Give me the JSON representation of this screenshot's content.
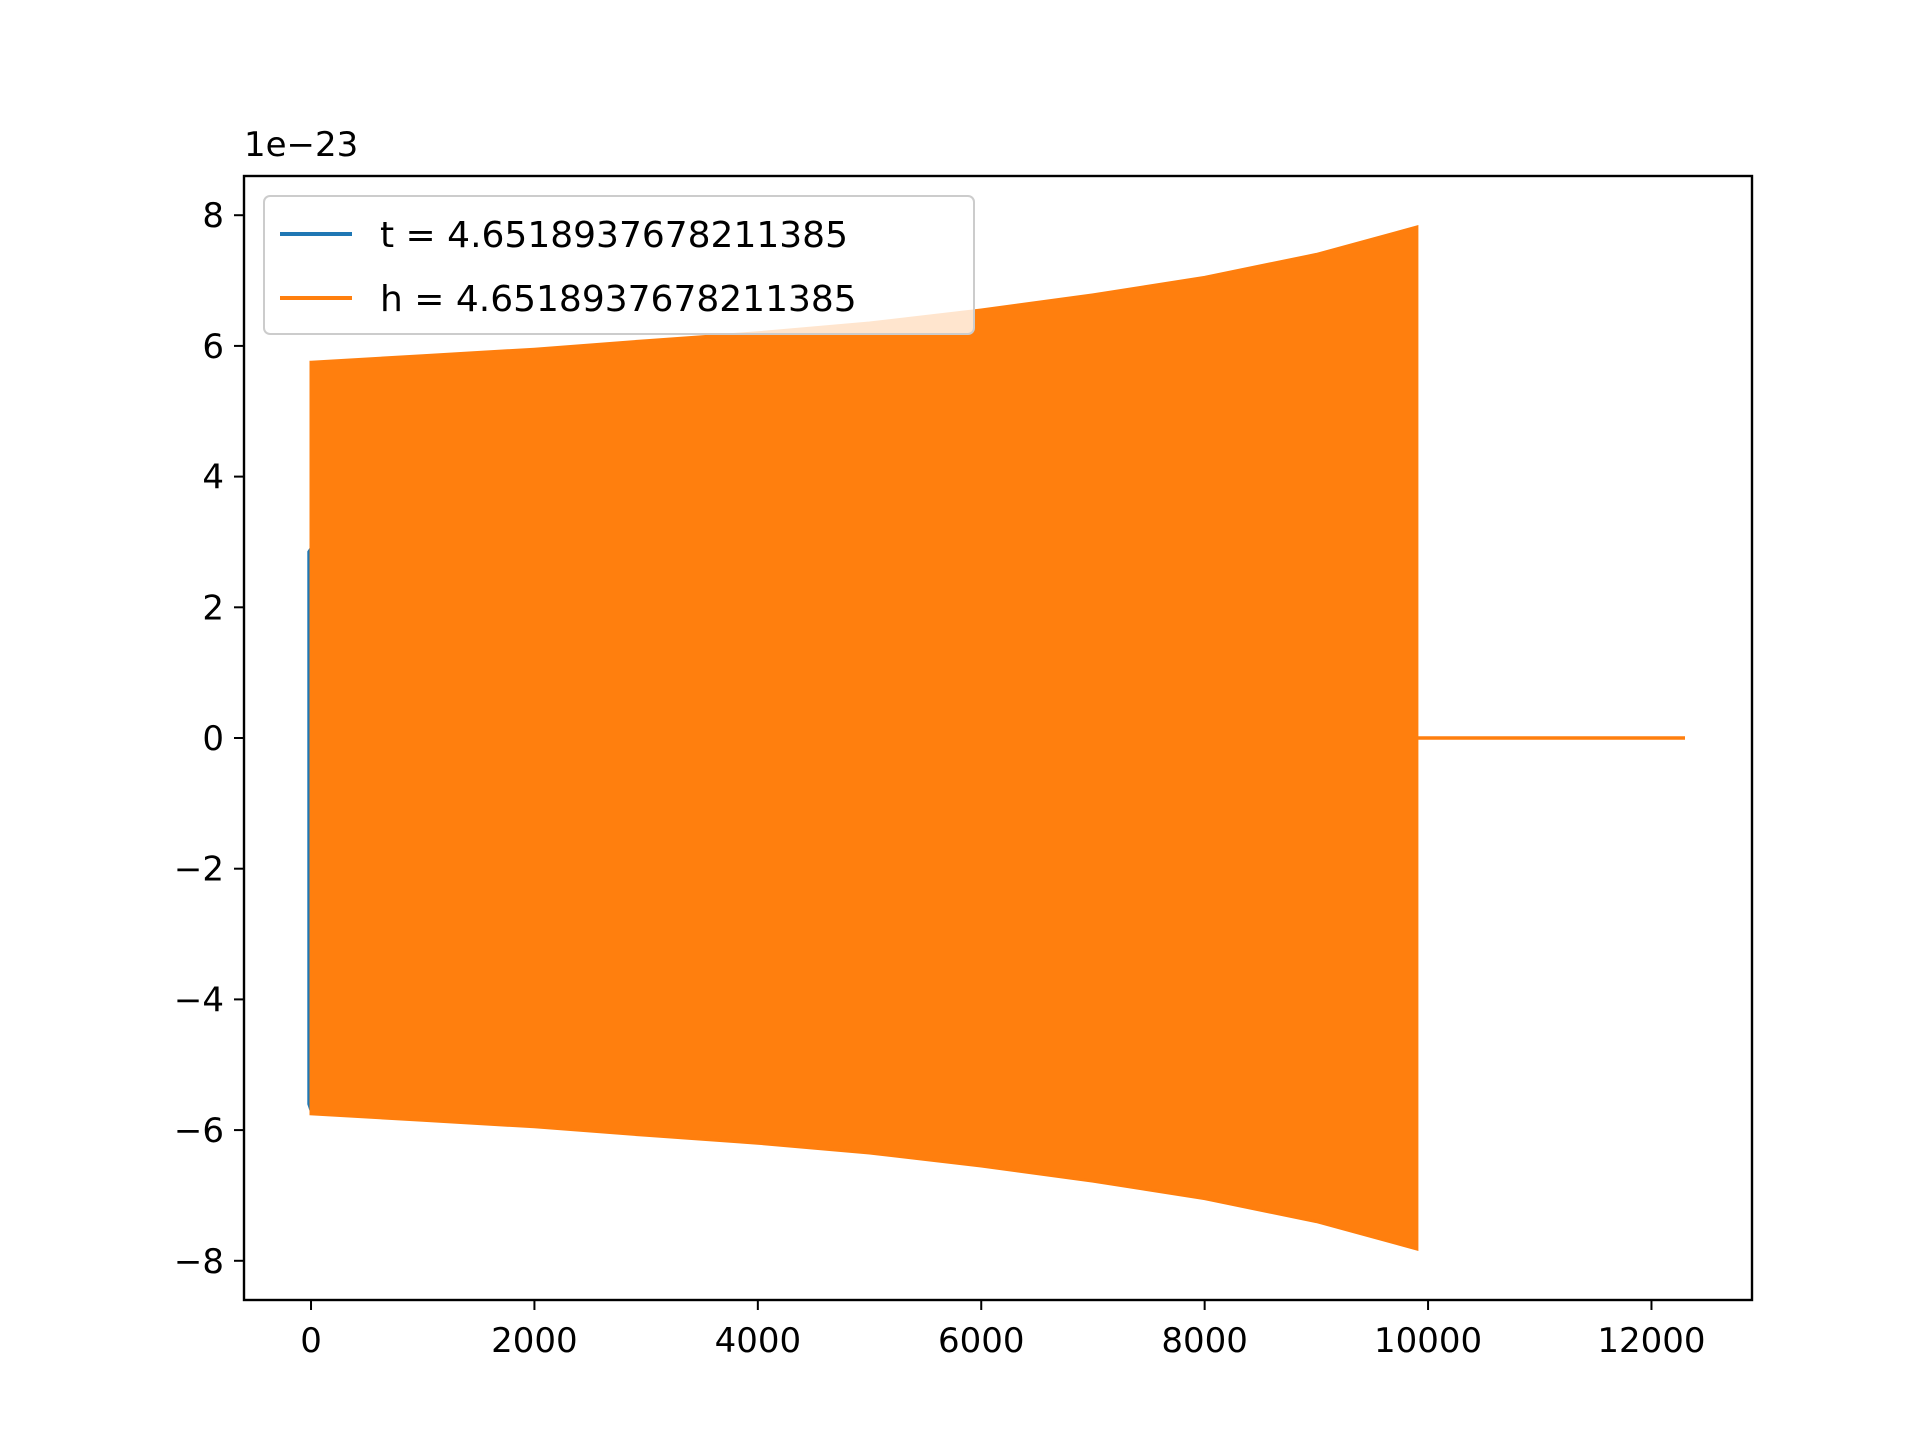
{
  "chart_data": {
    "type": "line",
    "title": "",
    "xlabel": "",
    "ylabel": "",
    "y_offset_label": "1e−23",
    "xlim": [
      -600,
      12900
    ],
    "ylim": [
      -8.6,
      8.6
    ],
    "x_ticks": [
      {
        "value": 0,
        "label": "0"
      },
      {
        "value": 2000,
        "label": "2000"
      },
      {
        "value": 4000,
        "label": "4000"
      },
      {
        "value": 6000,
        "label": "6000"
      },
      {
        "value": 8000,
        "label": "8000"
      },
      {
        "value": 10000,
        "label": "10000"
      },
      {
        "value": 12000,
        "label": "12000"
      }
    ],
    "y_ticks": [
      {
        "value": 8,
        "label": "8"
      },
      {
        "value": 6,
        "label": "6"
      },
      {
        "value": 4,
        "label": "4"
      },
      {
        "value": 2,
        "label": "2"
      },
      {
        "value": 0,
        "label": "0"
      },
      {
        "value": -2,
        "label": "−2"
      },
      {
        "value": -4,
        "label": "−4"
      },
      {
        "value": -6,
        "label": "−6"
      },
      {
        "value": -8,
        "label": "−8"
      }
    ],
    "grid": false,
    "legend_position": "top-left",
    "series": [
      {
        "name": "t = 4.6518937678211385",
        "color": "#1f77b4",
        "envelope_upper": [
          [
            -20,
            2.85
          ],
          [
            0,
            2.9
          ]
        ],
        "envelope_lower": [
          [
            -20,
            -5.6
          ],
          [
            0,
            -5.7
          ]
        ]
      },
      {
        "name": "h = 4.6518937678211385",
        "color": "#ff7f0e",
        "envelope_upper": [
          [
            0,
            5.75
          ],
          [
            1000,
            5.85
          ],
          [
            2000,
            5.95
          ],
          [
            3000,
            6.08
          ],
          [
            4000,
            6.2
          ],
          [
            5000,
            6.35
          ],
          [
            6000,
            6.55
          ],
          [
            7000,
            6.78
          ],
          [
            8000,
            7.05
          ],
          [
            9000,
            7.4
          ],
          [
            9900,
            7.82
          ]
        ],
        "envelope_lower": [
          [
            0,
            -5.75
          ],
          [
            1000,
            -5.85
          ],
          [
            2000,
            -5.95
          ],
          [
            3000,
            -6.08
          ],
          [
            4000,
            -6.2
          ],
          [
            5000,
            -6.35
          ],
          [
            6000,
            -6.55
          ],
          [
            7000,
            -6.78
          ],
          [
            8000,
            -7.05
          ],
          [
            9000,
            -7.4
          ],
          [
            9900,
            -7.82
          ]
        ],
        "tail": [
          [
            9900,
            0
          ],
          [
            12300,
            0
          ]
        ]
      }
    ]
  }
}
